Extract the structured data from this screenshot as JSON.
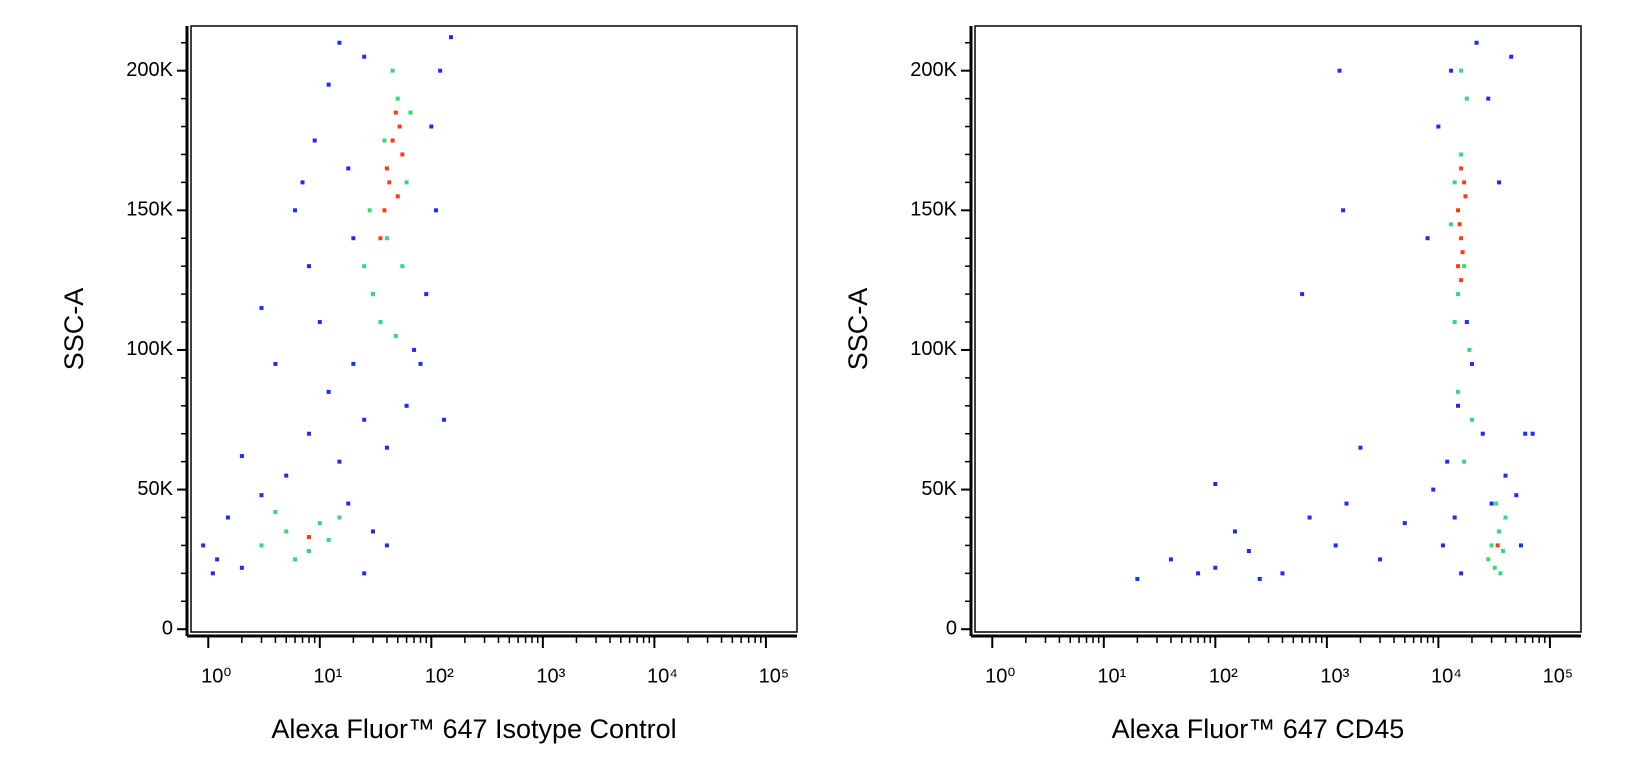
{
  "chart_data": [
    {
      "type": "scatter",
      "x_label": "Alexa Fluor™ 647 Isotype Control",
      "y_label": "SSC-A",
      "xscale": "log",
      "xlim": [
        0.7,
        190000
      ],
      "ylim": [
        -1000,
        216000
      ],
      "xticks": [
        {
          "value": 1,
          "label": "10⁰"
        },
        {
          "value": 10,
          "label": "10¹"
        },
        {
          "value": 100,
          "label": "10²"
        },
        {
          "value": 1000,
          "label": "10³"
        },
        {
          "value": 10000,
          "label": "10⁴"
        },
        {
          "value": 100000,
          "label": "10⁵"
        }
      ],
      "yticks": [
        0,
        {
          "value": 50000,
          "label": "50K"
        },
        {
          "value": 100000,
          "label": "100K"
        },
        {
          "value": 150000,
          "label": "150K"
        },
        {
          "value": 200000,
          "label": "200K"
        }
      ],
      "xminorticks": [
        2,
        3,
        4,
        5,
        6,
        7,
        8,
        9,
        20,
        30,
        40,
        50,
        60,
        70,
        80,
        90,
        200,
        300,
        400,
        500,
        600,
        700,
        800,
        900,
        2000,
        3000,
        4000,
        5000,
        6000,
        7000,
        8000,
        9000,
        20000,
        30000,
        40000,
        50000,
        60000,
        70000,
        80000,
        90000
      ],
      "yminorticks": [
        10000,
        20000,
        30000,
        40000,
        60000,
        70000,
        80000,
        90000,
        110000,
        120000,
        130000,
        140000,
        160000,
        170000,
        180000,
        190000,
        210000
      ],
      "series": [
        {
          "color": "#1a2cff",
          "x": [
            1.2,
            2,
            1.5,
            3,
            0.9,
            25,
            30,
            5,
            8,
            12,
            15,
            20,
            10,
            8,
            6,
            9,
            12,
            15,
            100,
            110,
            90,
            80,
            60,
            40,
            25,
            18,
            3,
            4,
            7,
            120,
            150,
            2,
            1.1,
            40,
            70,
            30,
            20,
            18,
            25,
            130
          ],
          "values": [
            25000,
            22000,
            40000,
            48000,
            30000,
            20000,
            35000,
            55000,
            70000,
            85000,
            60000,
            95000,
            110000,
            130000,
            150000,
            175000,
            195000,
            210000,
            180000,
            150000,
            120000,
            95000,
            80000,
            65000,
            75000,
            45000,
            115000,
            95000,
            160000,
            200000,
            212000,
            62000,
            20000,
            30000,
            100000,
            120000,
            140000,
            165000,
            205000,
            75000
          ]
        },
        {
          "color": "#2fdc78",
          "x": [
            3,
            5,
            8,
            10,
            6,
            12,
            30,
            40,
            35,
            50,
            45,
            60,
            28,
            55,
            38,
            65,
            25,
            48,
            15,
            4
          ],
          "values": [
            30000,
            35000,
            28000,
            38000,
            25000,
            32000,
            120000,
            140000,
            110000,
            190000,
            200000,
            160000,
            150000,
            130000,
            175000,
            185000,
            130000,
            105000,
            40000,
            42000
          ]
        },
        {
          "color": "#ff3a10",
          "x": [
            40,
            45,
            50,
            38,
            48,
            42,
            55,
            8,
            35,
            52
          ],
          "values": [
            165000,
            175000,
            155000,
            150000,
            185000,
            160000,
            170000,
            33000,
            140000,
            180000
          ]
        }
      ]
    },
    {
      "type": "scatter",
      "x_label": "Alexa Fluor™ 647 CD45",
      "y_label": "SSC-A",
      "xscale": "log",
      "xlim": [
        0.7,
        190000
      ],
      "ylim": [
        -1000,
        216000
      ],
      "xticks": [
        {
          "value": 1,
          "label": "10⁰"
        },
        {
          "value": 10,
          "label": "10¹"
        },
        {
          "value": 100,
          "label": "10²"
        },
        {
          "value": 1000,
          "label": "10³"
        },
        {
          "value": 10000,
          "label": "10⁴"
        },
        {
          "value": 100000,
          "label": "10⁵"
        }
      ],
      "yticks": [
        0,
        {
          "value": 50000,
          "label": "50K"
        },
        {
          "value": 100000,
          "label": "100K"
        },
        {
          "value": 150000,
          "label": "150K"
        },
        {
          "value": 200000,
          "label": "200K"
        }
      ],
      "xminorticks": [
        2,
        3,
        4,
        5,
        6,
        7,
        8,
        9,
        20,
        30,
        40,
        50,
        60,
        70,
        80,
        90,
        200,
        300,
        400,
        500,
        600,
        700,
        800,
        900,
        2000,
        3000,
        4000,
        5000,
        6000,
        7000,
        8000,
        9000,
        20000,
        30000,
        40000,
        50000,
        60000,
        70000,
        80000,
        90000
      ],
      "yminorticks": [
        10000,
        20000,
        30000,
        40000,
        60000,
        70000,
        80000,
        90000,
        110000,
        120000,
        130000,
        140000,
        160000,
        170000,
        180000,
        190000,
        210000
      ],
      "series": [
        {
          "color": "#1a2cff",
          "x": [
            12000,
            15000,
            20000,
            25000,
            9000,
            30000,
            40000,
            50000,
            60000,
            13000,
            22000,
            10000,
            28000,
            35000,
            8000,
            45000,
            18000,
            14000,
            11000,
            20,
            40,
            70,
            100,
            150,
            200,
            250,
            400,
            700,
            1200,
            1500,
            2000,
            3000,
            600,
            100,
            1300,
            1400,
            5000,
            55000,
            70000,
            16000
          ],
          "values": [
            60000,
            80000,
            95000,
            70000,
            50000,
            45000,
            55000,
            48000,
            70000,
            200000,
            210000,
            180000,
            190000,
            160000,
            140000,
            205000,
            110000,
            40000,
            30000,
            18000,
            25000,
            20000,
            22000,
            35000,
            28000,
            18000,
            20000,
            40000,
            30000,
            45000,
            65000,
            25000,
            120000,
            52000,
            200000,
            150000,
            38000,
            30000,
            70000,
            20000
          ]
        },
        {
          "color": "#2fdc78",
          "x": [
            15000,
            17000,
            14000,
            16000,
            18000,
            13000,
            19000,
            15000,
            30000,
            35000,
            28000,
            40000,
            32000,
            38000,
            17000,
            16000,
            14000,
            20000,
            33000,
            36000
          ],
          "values": [
            120000,
            130000,
            110000,
            170000,
            190000,
            145000,
            100000,
            85000,
            30000,
            35000,
            25000,
            40000,
            22000,
            28000,
            60000,
            200000,
            160000,
            75000,
            45000,
            20000
          ]
        },
        {
          "color": "#ff3a10",
          "x": [
            16000,
            15000,
            17000,
            16500,
            15500,
            17500,
            16000,
            15000,
            16000,
            34000
          ],
          "values": [
            140000,
            150000,
            160000,
            135000,
            145000,
            155000,
            165000,
            130000,
            125000,
            30000
          ]
        }
      ]
    }
  ]
}
